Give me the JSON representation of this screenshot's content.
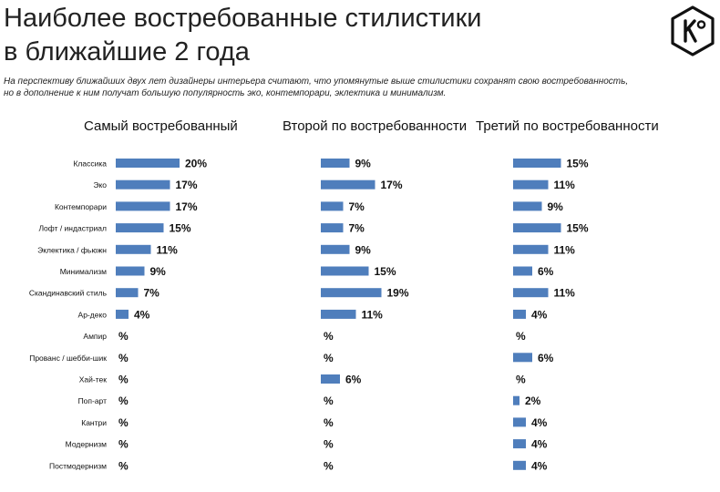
{
  "header": {
    "title_line1": "Наиболее востребованные стилистики",
    "title_line2": "в ближайшие 2 года",
    "subtitle_line1": "На перспективу ближайших двух лет дизайнеры интерьера считают, что упомянутые выше стилистики сохранят  свою востребованность,",
    "subtitle_line2": "но в дополнение к ним получат большую популярность эко, контемпорари, эклектика и минимализм.",
    "logo_text": "K°"
  },
  "chart_data": {
    "type": "bar",
    "orientation": "horizontal",
    "categories": [
      "Классика",
      "Эко",
      "Контемпорари",
      "Лофт / индастриал",
      "Эклектика / фьюжн",
      "Минимализм",
      "Скандинавский стиль",
      "Ар-деко",
      "Ампир",
      "Прованс / шебби-шик",
      "Хай-тек",
      "Поп-арт",
      "Кантри",
      "Модернизм",
      "Постмодернизм"
    ],
    "series": [
      {
        "name": "Самый востребованный",
        "values": [
          20,
          17,
          17,
          15,
          11,
          9,
          7,
          4,
          null,
          null,
          null,
          null,
          null,
          null,
          null
        ],
        "labels": [
          "20%",
          "17%",
          "17%",
          "15%",
          "11%",
          "9%",
          "7%",
          "4%",
          "%",
          "%",
          "%",
          "%",
          "%",
          "%",
          "%"
        ]
      },
      {
        "name": "Второй по востребованности",
        "values": [
          9,
          17,
          7,
          7,
          9,
          15,
          19,
          11,
          null,
          null,
          6,
          null,
          null,
          null,
          null
        ],
        "labels": [
          "9%",
          "17%",
          "7%",
          "7%",
          "9%",
          "15%",
          "19%",
          "11%",
          "%",
          "%",
          "6%",
          "%",
          "%",
          "%",
          "%"
        ]
      },
      {
        "name": "Третий по востребованности",
        "values": [
          15,
          11,
          9,
          15,
          11,
          6,
          11,
          4,
          null,
          6,
          null,
          2,
          4,
          4,
          4
        ],
        "labels": [
          "15%",
          "11%",
          "9%",
          "15%",
          "11%",
          "6%",
          "11%",
          "4%",
          "%",
          "6%",
          "%",
          "2%",
          "4%",
          "4%",
          "4%"
        ]
      }
    ],
    "unit": "%",
    "bar_color": "#4f7ebc",
    "grid": false,
    "legend": "none"
  }
}
